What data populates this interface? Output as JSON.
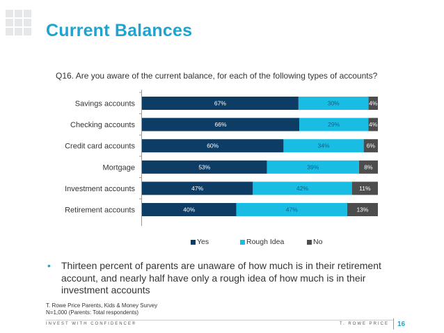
{
  "slide": {
    "title": "Current Balances",
    "question": "Q16. Are you aware of the current balance, for each of the following types of accounts?",
    "bullet": "Thirteen percent of parents are unaware of how much is in their retirement account, and nearly half have only a rough idea of how much is in their investment accounts",
    "source_line1": "T. Rowe Price Parents, Kids & Money Survey",
    "source_line2": "N=1,000 (Parents: Total respondents)",
    "footer_left": "INVEST WITH CONFIDENCE®",
    "footer_right": "T. ROWE PRICE",
    "page_number": "16"
  },
  "chart_data": {
    "type": "bar",
    "orientation": "horizontal",
    "stacked": true,
    "categories": [
      "Savings accounts",
      "Checking accounts",
      "Credit card accounts",
      "Mortgage",
      "Investment accounts",
      "Retirement accounts"
    ],
    "series": [
      {
        "name": "Yes",
        "values": [
          67,
          66,
          60,
          53,
          47,
          40
        ],
        "labels": [
          "67%",
          "66%",
          "60%",
          "53%",
          "47%",
          "40%"
        ],
        "color": "#0d3c64"
      },
      {
        "name": "Rough Idea",
        "values": [
          30,
          29,
          34,
          39,
          42,
          47
        ],
        "labels": [
          "30%",
          "29%",
          "34%",
          "39%",
          "42%",
          "47%"
        ],
        "color": "#19bde3"
      },
      {
        "name": "No",
        "values": [
          4,
          4,
          6,
          8,
          11,
          13
        ],
        "labels": [
          "4%",
          "4%",
          "6%",
          "8%",
          "11%",
          "13%"
        ],
        "color": "#4d4d4d"
      }
    ],
    "legend_position": "bottom",
    "grid": false
  },
  "colors": {
    "title": "#1fa3cf",
    "accent": "#1fa3cf"
  }
}
